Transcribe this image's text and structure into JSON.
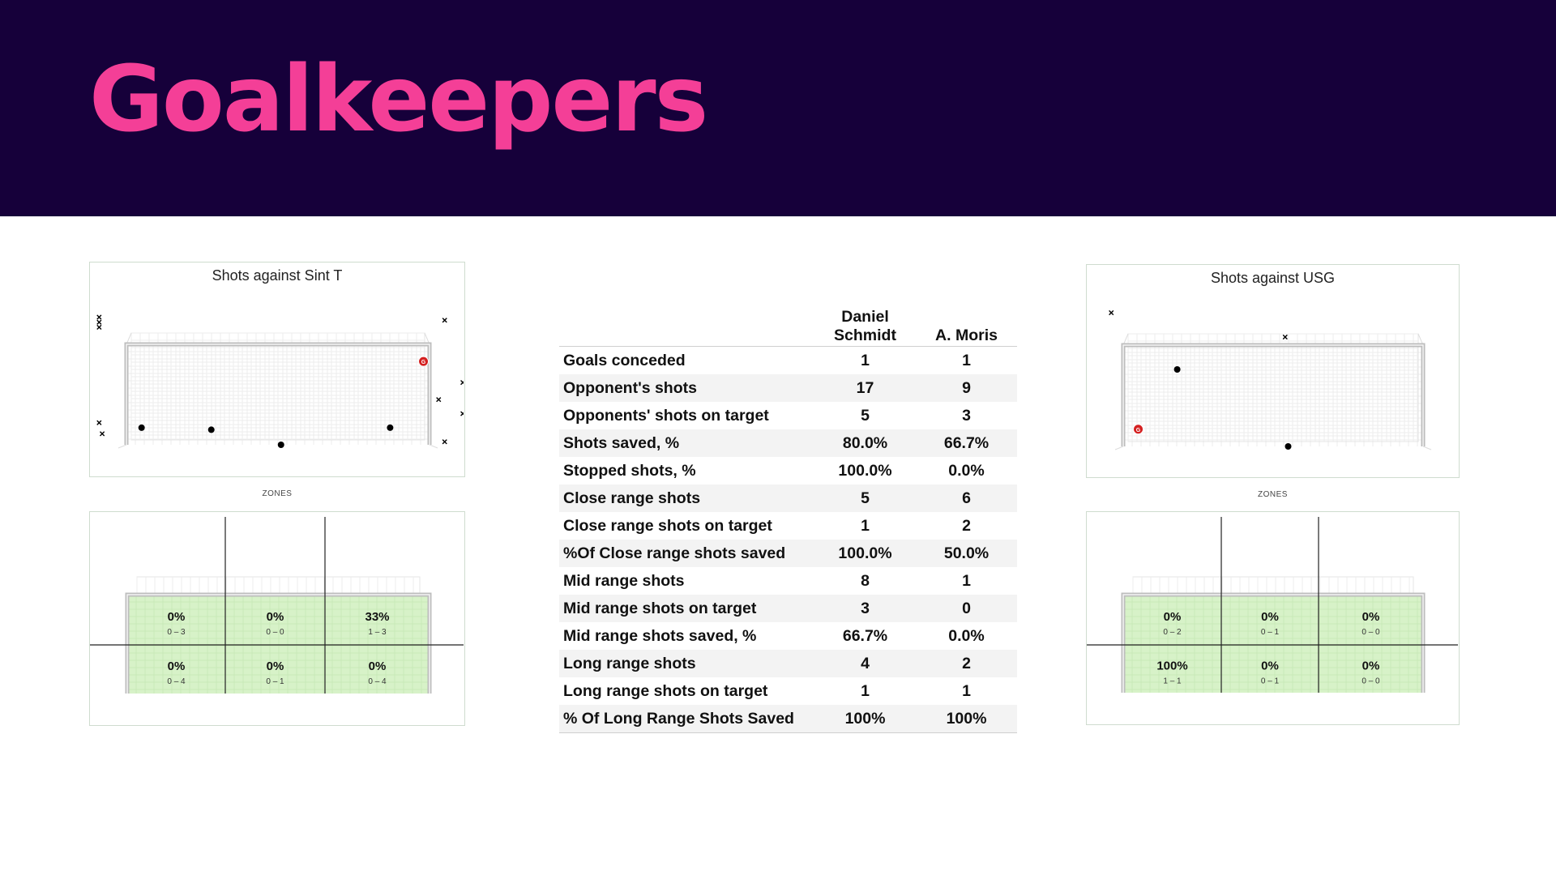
{
  "page": {
    "title": "Goalkeepers"
  },
  "colors": {
    "header_bg": "#16003a",
    "title": "#f43f97",
    "zone_fill": "#d7f2c8",
    "goal_marker": "#d42020"
  },
  "panels": {
    "left": {
      "title": "Shots against Sint T",
      "zones_caption": "ZONES"
    },
    "right": {
      "title": "Shots against USG",
      "zones_caption": "ZONES"
    }
  },
  "table": {
    "headers": [
      "Daniel\nSchmidt",
      "A. Moris"
    ],
    "rows": [
      {
        "label": "Goals conceded",
        "a": "1",
        "b": "1"
      },
      {
        "label": "Opponent's shots",
        "a": "17",
        "b": "9"
      },
      {
        "label": "Opponents' shots  on target",
        "a": "5",
        "b": "3"
      },
      {
        "label": "Shots saved, %",
        "a": "80.0%",
        "b": "66.7%"
      },
      {
        "label": "Stopped shots, %",
        "a": "100.0%",
        "b": "0.0%"
      },
      {
        "label": "Close range shots",
        "a": "5",
        "b": "6"
      },
      {
        "label": "Close range shots on target",
        "a": "1",
        "b": "2"
      },
      {
        "label": "%Of Close range shots saved",
        "a": "100.0%",
        "b": "50.0%"
      },
      {
        "label": "Mid range shots",
        "a": "8",
        "b": "1"
      },
      {
        "label": "Mid range shots on target",
        "a": "3",
        "b": "0"
      },
      {
        "label": "Mid range shots saved, %",
        "a": "66.7%",
        "b": "0.0%"
      },
      {
        "label": "Long range shots",
        "a": "4",
        "b": "2"
      },
      {
        "label": "Long range shots on target",
        "a": "1",
        "b": "1"
      },
      {
        "label": "% Of Long Range Shots Saved",
        "a": "100%",
        "b": "100%"
      }
    ]
  },
  "chart_data": [
    {
      "type": "table",
      "title": "Shots against Sint T",
      "zones": [
        {
          "pct": "0%",
          "ratio": "0 – 3"
        },
        {
          "pct": "0%",
          "ratio": "0 – 0"
        },
        {
          "pct": "33%",
          "ratio": "1 – 3"
        },
        {
          "pct": "0%",
          "ratio": "0 – 4"
        },
        {
          "pct": "0%",
          "ratio": "0 – 1"
        },
        {
          "pct": "0%",
          "ratio": "0 – 4"
        }
      ],
      "shots": [
        {
          "kind": "save",
          "x": 0.05,
          "y": 0.17
        },
        {
          "kind": "save",
          "x": 0.28,
          "y": 0.15
        },
        {
          "kind": "save",
          "x": 0.51,
          "y": 0.0
        },
        {
          "kind": "save",
          "x": 0.87,
          "y": 0.17
        },
        {
          "kind": "goal",
          "x": 0.98,
          "y": 0.83
        },
        {
          "kind": "miss",
          "x": -0.09,
          "y": 1.27
        },
        {
          "kind": "miss",
          "x": -0.09,
          "y": 1.22
        },
        {
          "kind": "miss",
          "x": -0.09,
          "y": 1.17
        },
        {
          "kind": "miss",
          "x": 1.05,
          "y": 1.24
        },
        {
          "kind": "miss",
          "x": 1.11,
          "y": 0.62
        },
        {
          "kind": "miss",
          "x": 1.03,
          "y": 0.45
        },
        {
          "kind": "miss",
          "x": 1.11,
          "y": 0.31
        },
        {
          "kind": "miss",
          "x": 1.05,
          "y": 0.03
        },
        {
          "kind": "miss",
          "x": -0.09,
          "y": 0.22
        },
        {
          "kind": "miss",
          "x": -0.08,
          "y": 0.11
        }
      ]
    },
    {
      "type": "table",
      "title": "Shots against USG",
      "zones": [
        {
          "pct": "0%",
          "ratio": "0 – 2"
        },
        {
          "pct": "0%",
          "ratio": "0 – 1"
        },
        {
          "pct": "0%",
          "ratio": "0 – 0"
        },
        {
          "pct": "100%",
          "ratio": "1 – 1"
        },
        {
          "pct": "0%",
          "ratio": "0 – 1"
        },
        {
          "pct": "0%",
          "ratio": "0 – 0"
        }
      ],
      "shots": [
        {
          "kind": "save",
          "x": 0.18,
          "y": 0.76
        },
        {
          "kind": "goal",
          "x": 0.05,
          "y": 0.17
        },
        {
          "kind": "save",
          "x": 0.55,
          "y": 0.0
        },
        {
          "kind": "miss",
          "x": -0.04,
          "y": 1.32
        },
        {
          "kind": "miss",
          "x": 0.54,
          "y": 1.08
        }
      ]
    }
  ]
}
